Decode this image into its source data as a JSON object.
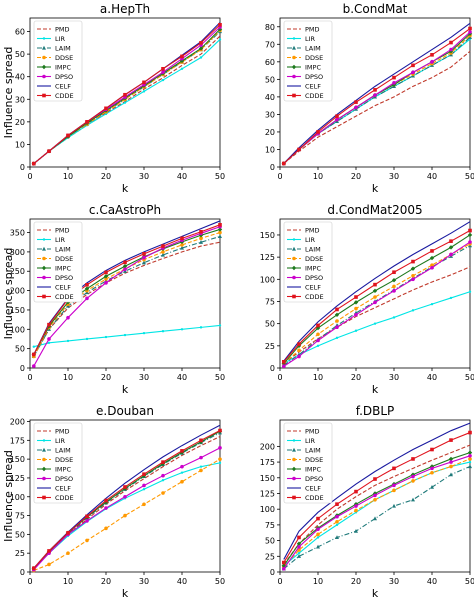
{
  "figure": {
    "legend_entries": [
      {
        "name": "PMD",
        "color": "#c0392b",
        "style": "dashed",
        "marker": "none"
      },
      {
        "name": "LIR",
        "color": "#00e5e5",
        "style": "solid",
        "marker": "dot"
      },
      {
        "name": "LAIM",
        "color": "#1f7a7a",
        "style": "dashdot",
        "marker": "triangle"
      },
      {
        "name": "DDSE",
        "color": "#ff9900",
        "style": "dashed",
        "marker": "circle"
      },
      {
        "name": "IMPC",
        "color": "#1e7a1e",
        "style": "solid",
        "marker": "diamond"
      },
      {
        "name": "DPSO",
        "color": "#cc00cc",
        "style": "solid",
        "marker": "circle"
      },
      {
        "name": "CELF",
        "color": "#1a1aa0",
        "style": "solid",
        "marker": "none"
      },
      {
        "name": "CDDE",
        "color": "#e0141e",
        "style": "solid",
        "marker": "square"
      }
    ]
  },
  "chart_data": [
    {
      "type": "line",
      "title": "a.HepTh",
      "xlabel": "k",
      "ylabel": "Influence spread",
      "xlim": [
        0,
        50
      ],
      "ylim": [
        0,
        66
      ],
      "xticks": [
        0,
        10,
        20,
        30,
        40,
        50
      ],
      "yticks": [
        0,
        10,
        20,
        30,
        40,
        50,
        60
      ],
      "legend": "top-left",
      "x": [
        1,
        5,
        10,
        15,
        20,
        25,
        30,
        35,
        40,
        45,
        50
      ],
      "series": [
        {
          "name": "PMD",
          "values": [
            1.5,
            7,
            13,
            18.5,
            24,
            29,
            34.5,
            39.5,
            45,
            50,
            58
          ]
        },
        {
          "name": "LIR",
          "values": [
            1.5,
            7,
            13,
            18.5,
            23.5,
            28.5,
            33.5,
            38.5,
            43.5,
            48.5,
            56.5
          ]
        },
        {
          "name": "LAIM",
          "values": [
            1.5,
            7,
            13.5,
            19,
            24.5,
            30,
            35.5,
            41,
            46.5,
            52,
            60
          ]
        },
        {
          "name": "DDSE",
          "values": [
            1.5,
            7,
            13.5,
            19,
            24.5,
            30,
            35.5,
            41,
            46.5,
            52,
            60.5
          ]
        },
        {
          "name": "IMPC",
          "values": [
            1.5,
            7,
            13.5,
            19.5,
            25,
            30.5,
            36,
            41.5,
            47,
            52.5,
            61
          ]
        },
        {
          "name": "DPSO",
          "values": [
            1.5,
            7,
            14,
            20,
            25.5,
            31,
            36.5,
            42,
            48,
            54,
            62
          ]
        },
        {
          "name": "CELF",
          "values": [
            1.5,
            7,
            14,
            20,
            26,
            32,
            37.5,
            43.5,
            49.5,
            55.5,
            64
          ]
        },
        {
          "name": "CDDE",
          "values": [
            1.5,
            7,
            14,
            20,
            26,
            32,
            37.5,
            43.5,
            49,
            55,
            63
          ]
        }
      ]
    },
    {
      "type": "line",
      "title": "b.CondMat",
      "xlabel": "k",
      "ylabel": "",
      "xlim": [
        0,
        50
      ],
      "ylim": [
        0,
        85
      ],
      "xticks": [
        0,
        10,
        20,
        30,
        40,
        50
      ],
      "yticks": [
        0,
        10,
        20,
        30,
        40,
        50,
        60,
        70,
        80
      ],
      "legend": "top-left",
      "x": [
        1,
        5,
        10,
        15,
        20,
        25,
        30,
        35,
        40,
        45,
        50
      ],
      "series": [
        {
          "name": "PMD",
          "values": [
            2,
            9,
            17,
            23,
            29,
            35,
            40,
            46,
            51,
            57,
            66
          ]
        },
        {
          "name": "LIR",
          "values": [
            2,
            10,
            19,
            26,
            33,
            40,
            46,
            52,
            58,
            64,
            73
          ]
        },
        {
          "name": "LAIM",
          "values": [
            2,
            10,
            19,
            26,
            33,
            40,
            46,
            52,
            58,
            64,
            74
          ]
        },
        {
          "name": "DDSE",
          "values": [
            2,
            10,
            19,
            27,
            34,
            41,
            47,
            53,
            59,
            65,
            75
          ]
        },
        {
          "name": "IMPC",
          "values": [
            2,
            10,
            19,
            27,
            34,
            41,
            47,
            54,
            60,
            66,
            76
          ]
        },
        {
          "name": "DPSO",
          "values": [
            2,
            10,
            19,
            27,
            34,
            41,
            48,
            54,
            60,
            67,
            77
          ]
        },
        {
          "name": "CELF",
          "values": [
            2,
            11,
            21,
            30,
            38,
            46,
            53,
            60,
            67,
            74,
            82
          ]
        },
        {
          "name": "CDDE",
          "values": [
            2,
            10,
            20,
            29,
            37,
            44,
            51,
            58,
            64,
            71,
            79
          ]
        }
      ]
    },
    {
      "type": "line",
      "title": "c.CaAstroPh",
      "xlabel": "k",
      "ylabel": "Influence spread",
      "xlim": [
        0,
        50
      ],
      "ylim": [
        0,
        385
      ],
      "xticks": [
        0,
        10,
        20,
        30,
        40,
        50
      ],
      "yticks": [
        0,
        50,
        100,
        150,
        200,
        250,
        300,
        350
      ],
      "legend": "top-left",
      "x": [
        1,
        5,
        10,
        15,
        20,
        25,
        30,
        35,
        40,
        45,
        50
      ],
      "series": [
        {
          "name": "PMD",
          "values": [
            30,
            100,
            155,
            190,
            220,
            245,
            265,
            283,
            300,
            315,
            325
          ]
        },
        {
          "name": "LIR",
          "values": [
            55,
            65,
            70,
            75,
            80,
            85,
            90,
            95,
            100,
            105,
            110
          ]
        },
        {
          "name": "LAIM",
          "values": [
            30,
            100,
            160,
            195,
            225,
            250,
            272,
            292,
            310,
            325,
            340
          ]
        },
        {
          "name": "DDSE",
          "values": [
            30,
            105,
            165,
            200,
            230,
            256,
            280,
            300,
            318,
            335,
            350
          ]
        },
        {
          "name": "IMPC",
          "values": [
            35,
            108,
            170,
            205,
            237,
            263,
            287,
            308,
            326,
            343,
            358
          ]
        },
        {
          "name": "DPSO",
          "values": [
            5,
            75,
            130,
            180,
            220,
            255,
            285,
            310,
            330,
            348,
            365
          ]
        },
        {
          "name": "CELF",
          "values": [
            35,
            115,
            180,
            220,
            252,
            278,
            300,
            320,
            340,
            360,
            380
          ]
        },
        {
          "name": "CDDE",
          "values": [
            35,
            112,
            178,
            215,
            247,
            273,
            295,
            315,
            335,
            352,
            370
          ]
        }
      ]
    },
    {
      "type": "line",
      "title": "d.CondMat2005",
      "xlabel": "k",
      "ylabel": "",
      "xlim": [
        0,
        50
      ],
      "ylim": [
        0,
        168
      ],
      "xticks": [
        0,
        10,
        20,
        30,
        40,
        50
      ],
      "yticks": [
        0,
        25,
        50,
        75,
        100,
        125,
        150
      ],
      "legend": "top-left",
      "x": [
        1,
        5,
        10,
        15,
        20,
        25,
        30,
        35,
        40,
        45,
        50
      ],
      "series": [
        {
          "name": "PMD",
          "values": [
            5,
            18,
            33,
            46,
            58,
            68,
            78,
            88,
            97,
            105,
            114
          ]
        },
        {
          "name": "LIR",
          "values": [
            5,
            15,
            25,
            34,
            42,
            50,
            57,
            65,
            72,
            79,
            86
          ]
        },
        {
          "name": "LAIM",
          "values": [
            3,
            15,
            32,
            48,
            62,
            75,
            88,
            101,
            114,
            126,
            138
          ]
        },
        {
          "name": "DDSE",
          "values": [
            5,
            20,
            38,
            53,
            67,
            80,
            92,
            104,
            116,
            128,
            140
          ]
        },
        {
          "name": "IMPC",
          "values": [
            5,
            25,
            45,
            60,
            74,
            87,
            99,
            112,
            124,
            136,
            150
          ]
        },
        {
          "name": "DPSO",
          "values": [
            2,
            13,
            31,
            46,
            60,
            74,
            87,
            100,
            113,
            128,
            142
          ]
        },
        {
          "name": "CELF",
          "values": [
            8,
            30,
            52,
            70,
            86,
            101,
            115,
            128,
            140,
            152,
            165
          ]
        },
        {
          "name": "CDDE",
          "values": [
            7,
            27,
            48,
            66,
            80,
            94,
            108,
            120,
            132,
            143,
            155
          ]
        }
      ]
    },
    {
      "type": "line",
      "title": "e.Douban",
      "xlabel": "k",
      "ylabel": "Influence spread",
      "xlim": [
        0,
        50
      ],
      "ylim": [
        0,
        202
      ],
      "xticks": [
        0,
        10,
        20,
        30,
        40,
        50
      ],
      "yticks": [
        0,
        25,
        50,
        75,
        100,
        125,
        150,
        175,
        200
      ],
      "legend": "top-left",
      "x": [
        1,
        5,
        10,
        15,
        20,
        25,
        30,
        35,
        40,
        45,
        50
      ],
      "series": [
        {
          "name": "PMD",
          "values": [
            5,
            27,
            50,
            70,
            90,
            108,
            124,
            140,
            155,
            168,
            180
          ]
        },
        {
          "name": "LIR",
          "values": [
            5,
            25,
            48,
            67,
            84,
            98,
            110,
            122,
            132,
            140,
            145
          ]
        },
        {
          "name": "LAIM",
          "values": [
            5,
            27,
            51,
            72,
            92,
            110,
            127,
            143,
            158,
            172,
            185
          ]
        },
        {
          "name": "DDSE",
          "values": [
            2,
            10,
            25,
            42,
            58,
            75,
            90,
            105,
            120,
            135,
            150
          ]
        },
        {
          "name": "IMPC",
          "values": [
            5,
            27,
            52,
            73,
            93,
            111,
            128,
            144,
            159,
            173,
            187
          ]
        },
        {
          "name": "DPSO",
          "values": [
            3,
            25,
            50,
            68,
            85,
            100,
            115,
            128,
            140,
            152,
            165
          ]
        },
        {
          "name": "CELF",
          "values": [
            5,
            28,
            53,
            76,
            98,
            118,
            136,
            153,
            168,
            182,
            195
          ]
        },
        {
          "name": "CDDE",
          "values": [
            5,
            28,
            52,
            74,
            95,
            113,
            130,
            146,
            161,
            175,
            188
          ]
        }
      ]
    },
    {
      "type": "line",
      "title": "f.DBLP",
      "xlabel": "k",
      "ylabel": "",
      "xlim": [
        0,
        50
      ],
      "ylim": [
        0,
        242
      ],
      "xticks": [
        0,
        10,
        20,
        30,
        40,
        50
      ],
      "yticks": [
        0,
        25,
        50,
        75,
        100,
        125,
        150,
        175,
        200
      ],
      "legend": "top-left",
      "x": [
        1,
        5,
        10,
        15,
        20,
        25,
        30,
        35,
        40,
        45,
        50
      ],
      "series": [
        {
          "name": "PMD",
          "values": [
            12,
            45,
            75,
            100,
            120,
            138,
            152,
            165,
            178,
            190,
            202
          ]
        },
        {
          "name": "LIR",
          "values": [
            10,
            30,
            55,
            75,
            95,
            115,
            130,
            145,
            158,
            168,
            175
          ]
        },
        {
          "name": "LAIM",
          "values": [
            5,
            25,
            40,
            55,
            65,
            85,
            105,
            115,
            135,
            155,
            168
          ]
        },
        {
          "name": "DDSE",
          "values": [
            8,
            35,
            60,
            80,
            98,
            115,
            130,
            145,
            158,
            168,
            180
          ]
        },
        {
          "name": "IMPC",
          "values": [
            10,
            45,
            70,
            90,
            108,
            125,
            140,
            155,
            168,
            180,
            190
          ]
        },
        {
          "name": "DPSO",
          "values": [
            5,
            40,
            68,
            88,
            105,
            122,
            138,
            152,
            165,
            175,
            185
          ]
        },
        {
          "name": "CELF",
          "values": [
            20,
            65,
            95,
            118,
            140,
            160,
            178,
            195,
            210,
            225,
            237
          ]
        },
        {
          "name": "CDDE",
          "values": [
            15,
            55,
            85,
            108,
            128,
            148,
            165,
            180,
            195,
            210,
            222
          ]
        }
      ]
    }
  ]
}
